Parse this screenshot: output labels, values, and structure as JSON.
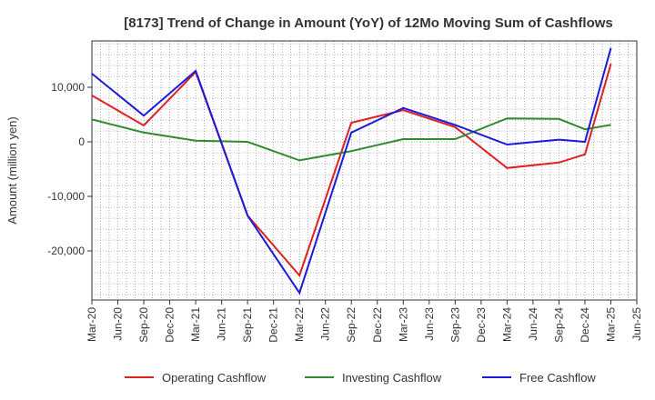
{
  "chart_data": {
    "type": "line",
    "title": "[8173]  Trend of Change in Amount (YoY) of 12Mo Moving Sum of Cashflows",
    "xlabel": "",
    "ylabel": "Amount (million yen)",
    "ylim": [
      -29000,
      18500
    ],
    "yticks": [
      10000,
      0,
      -10000,
      -20000
    ],
    "ytick_labels": [
      "10,000",
      "0",
      "-10,000",
      "-20,000"
    ],
    "categories": [
      "Mar-20",
      "Jun-20",
      "Sep-20",
      "Dec-20",
      "Mar-21",
      "Jun-21",
      "Sep-21",
      "Dec-21",
      "Mar-22",
      "Jun-22",
      "Sep-22",
      "Dec-22",
      "Mar-23",
      "Jun-23",
      "Sep-23",
      "Dec-23",
      "Mar-24",
      "Jun-24",
      "Sep-24",
      "Dec-24",
      "Mar-25",
      "Jun-25"
    ],
    "grid": true,
    "legend_position": "bottom",
    "series": [
      {
        "name": "Operating Cashflow",
        "color": "#e02020",
        "points": [
          {
            "x": "Mar-20",
            "y": 8500
          },
          {
            "x": "Sep-20",
            "y": 3000
          },
          {
            "x": "Mar-21",
            "y": 12800
          },
          {
            "x": "Sep-21",
            "y": -13500
          },
          {
            "x": "Mar-22",
            "y": -24500
          },
          {
            "x": "Sep-22",
            "y": 3500
          },
          {
            "x": "Mar-23",
            "y": 5800
          },
          {
            "x": "Sep-23",
            "y": 2700
          },
          {
            "x": "Mar-24",
            "y": -4800
          },
          {
            "x": "Sep-24",
            "y": -3800
          },
          {
            "x": "Dec-24",
            "y": -2300
          },
          {
            "x": "Mar-25",
            "y": 14300
          }
        ]
      },
      {
        "name": "Investing Cashflow",
        "color": "#2e8b2e",
        "points": [
          {
            "x": "Mar-20",
            "y": 4100
          },
          {
            "x": "Sep-20",
            "y": 1700
          },
          {
            "x": "Mar-21",
            "y": 200
          },
          {
            "x": "Sep-21",
            "y": 0
          },
          {
            "x": "Mar-22",
            "y": -3400
          },
          {
            "x": "Sep-22",
            "y": -1700
          },
          {
            "x": "Mar-23",
            "y": 500
          },
          {
            "x": "Sep-23",
            "y": 500
          },
          {
            "x": "Mar-24",
            "y": 4300
          },
          {
            "x": "Sep-24",
            "y": 4200
          },
          {
            "x": "Dec-24",
            "y": 2300
          },
          {
            "x": "Mar-25",
            "y": 3100
          }
        ]
      },
      {
        "name": "Free Cashflow",
        "color": "#1a1adc",
        "points": [
          {
            "x": "Mar-20",
            "y": 12500
          },
          {
            "x": "Sep-20",
            "y": 4800
          },
          {
            "x": "Mar-21",
            "y": 13000
          },
          {
            "x": "Sep-21",
            "y": -13500
          },
          {
            "x": "Mar-22",
            "y": -27700
          },
          {
            "x": "Sep-22",
            "y": 1700
          },
          {
            "x": "Mar-23",
            "y": 6200
          },
          {
            "x": "Sep-23",
            "y": 3100
          },
          {
            "x": "Mar-24",
            "y": -500
          },
          {
            "x": "Sep-24",
            "y": 400
          },
          {
            "x": "Dec-24",
            "y": 0
          },
          {
            "x": "Mar-25",
            "y": 17200
          }
        ]
      }
    ]
  }
}
